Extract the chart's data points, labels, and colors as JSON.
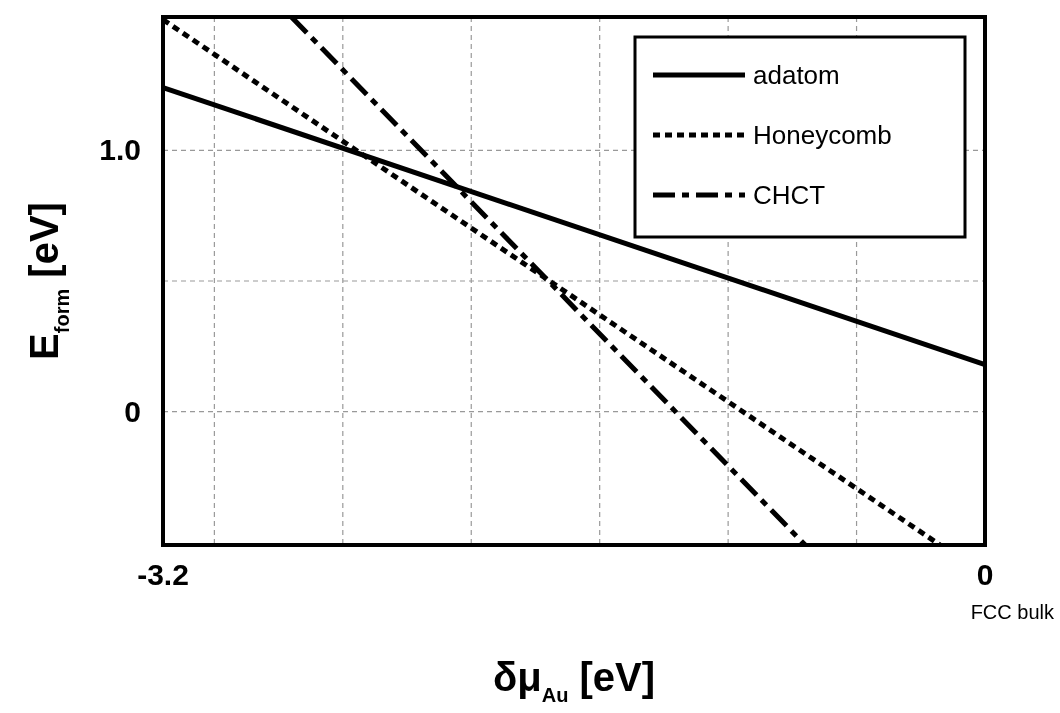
{
  "chart_data": {
    "type": "line",
    "xlabel": "δμ$_{Au}$ [eV]",
    "ylabel": "E$_{form}$ [eV]",
    "xlim": [
      -3.2,
      0
    ],
    "ylim": [
      -0.51,
      1.51
    ],
    "xticks": [
      -3.2,
      {
        "value": -3.0,
        "label": null
      },
      {
        "value": -2.5,
        "label": null
      },
      {
        "value": -2.0,
        "label": null
      },
      {
        "value": -1.5,
        "label": null
      },
      {
        "value": -1.0,
        "label": null
      },
      {
        "value": -0.5,
        "label": null
      },
      0
    ],
    "yticks": [
      0,
      {
        "value": 0.5,
        "label": null
      },
      {
        "value": 1.0,
        "label": "1.0"
      }
    ],
    "grid": true,
    "legend": "top right",
    "marker": "none",
    "annotations": [
      "FCC bulk"
    ],
    "series": [
      {
        "name": "adatom",
        "color": "#000000",
        "line_style": "solid",
        "x": [
          -3.2,
          0
        ],
        "values": [
          1.24,
          0.18
        ]
      },
      {
        "name": "Honeycomb",
        "color": "#000000",
        "line_style": "dotted",
        "x": [
          -3.2,
          -0.175
        ],
        "values": [
          1.5,
          -0.51
        ]
      },
      {
        "name": "CHCT",
        "color": "#000000",
        "line_style": "dashed",
        "x": [
          -2.7,
          -0.7
        ],
        "values": [
          1.51,
          -0.51
        ]
      }
    ]
  }
}
